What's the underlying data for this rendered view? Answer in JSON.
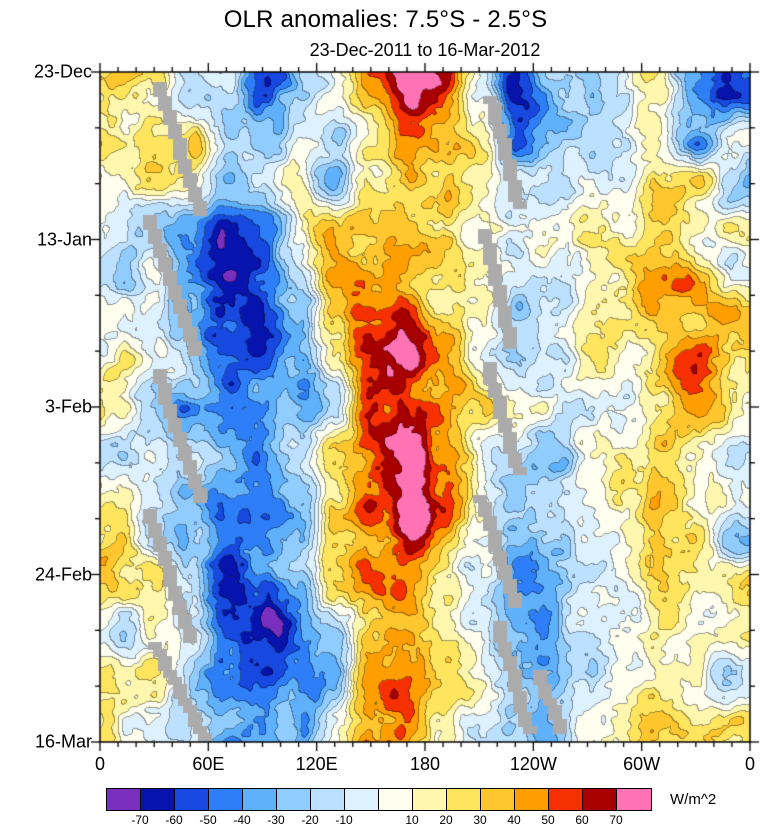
{
  "chart_data": {
    "type": "heatmap",
    "title": "OLR anomalies: 7.5°S - 2.5°S",
    "subtitle": "23-Dec-2011 to 16-Mar-2012",
    "unit": "W/m^2",
    "x_axis": {
      "ticks": [
        {
          "lon": 0,
          "label": "0"
        },
        {
          "lon": 60,
          "label": "60E"
        },
        {
          "lon": 120,
          "label": "120E"
        },
        {
          "lon": 180,
          "label": "180"
        },
        {
          "lon": 240,
          "label": "120W"
        },
        {
          "lon": 300,
          "label": "60W"
        },
        {
          "lon": 360,
          "label": "0"
        }
      ],
      "minor_step_deg": 10,
      "range": [
        0,
        360
      ]
    },
    "y_axis": {
      "ticks": [
        {
          "day": 0,
          "label": "23-Dec"
        },
        {
          "day": 21,
          "label": "13-Jan"
        },
        {
          "day": 42,
          "label": "3-Feb"
        },
        {
          "day": 63,
          "label": "24-Feb"
        },
        {
          "day": 84,
          "label": "16-Mar"
        }
      ],
      "minor_step_days": 7,
      "range_days": [
        0,
        84
      ],
      "top_to_bottom": true
    },
    "levels": [
      -70,
      -60,
      -50,
      -40,
      -30,
      -20,
      -10,
      0,
      10,
      20,
      30,
      40,
      50,
      60,
      70
    ],
    "colors": [
      "#7b2fbe",
      "#0713ad",
      "#1748e0",
      "#2e7ef8",
      "#5fb1fc",
      "#91ccfe",
      "#bce0ff",
      "#ddf1ff",
      "#fffff0",
      "#fff7ad",
      "#ffe45e",
      "#ffc62e",
      "#ff9e00",
      "#f63000",
      "#a80000",
      "#ff73b4"
    ],
    "missing_data_color": "#ababab",
    "missing_stripes": [
      [
        60,
        15,
        100,
        138
      ],
      [
        50,
        150,
        95,
        283
      ],
      [
        58,
        300,
        100,
        428
      ],
      [
        48,
        440,
        92,
        565
      ],
      [
        55,
        575,
        105,
        665
      ],
      [
        392,
        25,
        418,
        135
      ],
      [
        384,
        160,
        412,
        270
      ],
      [
        388,
        295,
        418,
        400
      ],
      [
        382,
        425,
        415,
        530
      ],
      [
        398,
        550,
        428,
        660
      ],
      [
        440,
        600,
        462,
        660
      ]
    ],
    "grid": {
      "cols": 18,
      "rows": 15,
      "lon_start": 10,
      "lon_step": 20,
      "values": [
        [
          30,
          10,
          -30,
          -20,
          -55,
          -30,
          0,
          30,
          60,
          40,
          0,
          -50,
          -15,
          0,
          10,
          15,
          -25,
          -50
        ],
        [
          30,
          25,
          35,
          -10,
          -40,
          -20,
          -35,
          20,
          55,
          30,
          5,
          -50,
          -20,
          -5,
          5,
          20,
          -30,
          20
        ],
        [
          20,
          30,
          10,
          -30,
          -20,
          10,
          -30,
          10,
          35,
          45,
          10,
          -20,
          -25,
          0,
          10,
          30,
          15,
          -20
        ],
        [
          10,
          -15,
          -25,
          -50,
          -45,
          -10,
          30,
          25,
          30,
          20,
          -10,
          -25,
          -10,
          15,
          5,
          25,
          10,
          15
        ],
        [
          -10,
          10,
          -30,
          -65,
          -55,
          -25,
          35,
          30,
          40,
          25,
          0,
          -15,
          -15,
          0,
          10,
          20,
          25,
          -10
        ],
        [
          15,
          -10,
          -20,
          -55,
          -60,
          -30,
          25,
          40,
          45,
          30,
          -5,
          -20,
          -10,
          5,
          10,
          25,
          15,
          20
        ],
        [
          25,
          10,
          -15,
          -45,
          -50,
          -35,
          10,
          45,
          55,
          35,
          5,
          -15,
          -20,
          -5,
          5,
          30,
          50,
          15
        ],
        [
          10,
          -20,
          -35,
          -40,
          -45,
          -30,
          -10,
          50,
          60,
          40,
          10,
          -10,
          -20,
          -10,
          0,
          25,
          45,
          20
        ],
        [
          -15,
          15,
          -10,
          -35,
          -40,
          -20,
          20,
          60,
          70,
          45,
          15,
          -15,
          -25,
          -10,
          5,
          30,
          20,
          -15
        ],
        [
          20,
          10,
          -25,
          -55,
          -50,
          -30,
          15,
          60,
          65,
          40,
          5,
          -20,
          -15,
          0,
          10,
          30,
          25,
          10
        ],
        [
          25,
          -10,
          -30,
          -65,
          -60,
          -35,
          30,
          50,
          60,
          35,
          0,
          -30,
          -20,
          -5,
          5,
          25,
          30,
          -20
        ],
        [
          15,
          20,
          -20,
          -70,
          -65,
          -40,
          20,
          55,
          60,
          30,
          -10,
          -35,
          -25,
          -10,
          0,
          20,
          35,
          25
        ],
        [
          -20,
          15,
          -15,
          -60,
          -70,
          -45,
          -25,
          45,
          55,
          25,
          5,
          -25,
          -30,
          -15,
          5,
          30,
          20,
          15
        ],
        [
          10,
          25,
          -25,
          -55,
          -60,
          -35,
          -15,
          40,
          50,
          35,
          10,
          -20,
          -25,
          -10,
          0,
          25,
          15,
          -10
        ],
        [
          20,
          10,
          -10,
          -40,
          -50,
          -30,
          10,
          35,
          45,
          30,
          0,
          -15,
          -20,
          -5,
          10,
          20,
          25,
          15
        ]
      ]
    }
  }
}
